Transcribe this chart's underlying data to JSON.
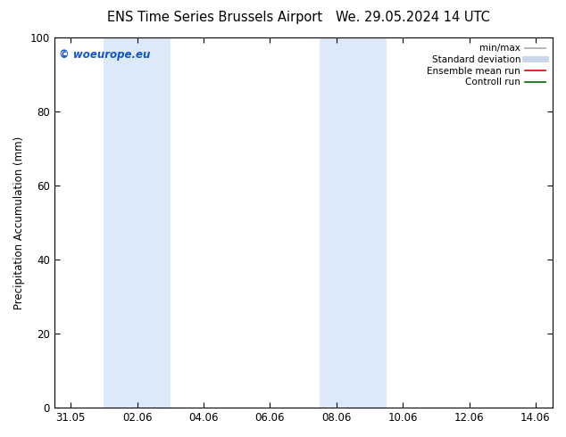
{
  "title_left": "ENS Time Series Brussels Airport",
  "title_right": "We. 29.05.2024 14 UTC",
  "ylabel": "Precipitation Accumulation (mm)",
  "ylim": [
    0,
    100
  ],
  "yticks": [
    0,
    20,
    40,
    60,
    80,
    100
  ],
  "xtick_labels": [
    "31.05",
    "02.06",
    "04.06",
    "06.06",
    "08.06",
    "10.06",
    "12.06",
    "14.06"
  ],
  "xtick_positions": [
    0,
    2,
    4,
    6,
    8,
    10,
    12,
    14
  ],
  "xlim": [
    -0.5,
    14.5
  ],
  "shaded_regions": [
    {
      "x_start": 1.0,
      "x_end": 3.0,
      "color": "#dce9f8"
    },
    {
      "x_start": 7.5,
      "x_end": 9.5,
      "color": "#dce9f8"
    }
  ],
  "watermark_text": "© woeurope.eu",
  "watermark_color": "#1155cc",
  "legend_entries": [
    {
      "label": "min/max",
      "color": "#aaaaaa",
      "lw": 1.2,
      "style": "solid"
    },
    {
      "label": "Standard deviation",
      "color": "#c8d8e8",
      "lw": 5,
      "style": "solid"
    },
    {
      "label": "Ensemble mean run",
      "color": "#dd0000",
      "lw": 1.2,
      "style": "solid"
    },
    {
      "label": "Controll run",
      "color": "#006600",
      "lw": 1.2,
      "style": "solid"
    }
  ],
  "bg_color": "#ffffff",
  "plot_bg_color": "#ffffff",
  "title_fontsize": 10.5,
  "label_fontsize": 8.5,
  "tick_fontsize": 8.5,
  "legend_fontsize": 7.5,
  "watermark_fontsize": 8.5
}
